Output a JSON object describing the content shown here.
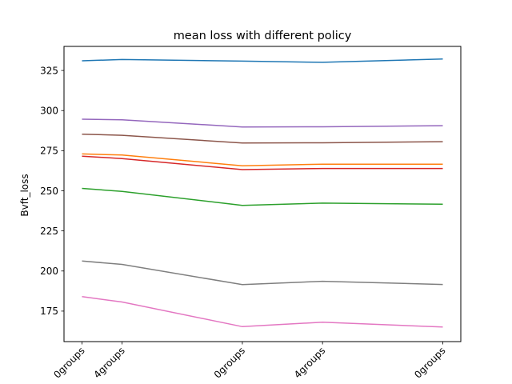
{
  "chart_data": {
    "type": "line",
    "title": "mean loss with different policy",
    "xlabel": "",
    "ylabel": "Bvft_loss",
    "x": [
      0,
      1,
      4,
      6,
      9
    ],
    "x_tick_labels": [
      "0groups",
      "4groups",
      "0groups",
      "4groups",
      "0groups"
    ],
    "xlim": [
      -0.45,
      9.45
    ],
    "ylim": [
      156,
      340
    ],
    "y_ticks": [
      175,
      200,
      225,
      250,
      275,
      300,
      325
    ],
    "grid": false,
    "legend": "none",
    "series": [
      {
        "color": "#1f77b4",
        "values": [
          331.0,
          331.8,
          330.8,
          330.1,
          332.1
        ]
      },
      {
        "color": "#ff7f0e",
        "values": [
          273.0,
          272.3,
          265.6,
          266.6,
          266.6
        ]
      },
      {
        "color": "#2ca02c",
        "values": [
          251.5,
          249.6,
          240.9,
          242.3,
          241.6
        ]
      },
      {
        "color": "#d62728",
        "values": [
          271.6,
          270.1,
          263.2,
          263.9,
          263.9
        ]
      },
      {
        "color": "#9467bd",
        "values": [
          294.6,
          294.2,
          289.8,
          289.9,
          290.6
        ]
      },
      {
        "color": "#8c564b",
        "values": [
          285.3,
          284.6,
          279.8,
          279.9,
          280.6
        ]
      },
      {
        "color": "#e377c2",
        "values": [
          184.0,
          180.7,
          165.3,
          168.1,
          165.1
        ]
      },
      {
        "color": "#7f7f7f",
        "values": [
          206.2,
          204.1,
          191.5,
          193.6,
          191.6
        ]
      }
    ]
  }
}
